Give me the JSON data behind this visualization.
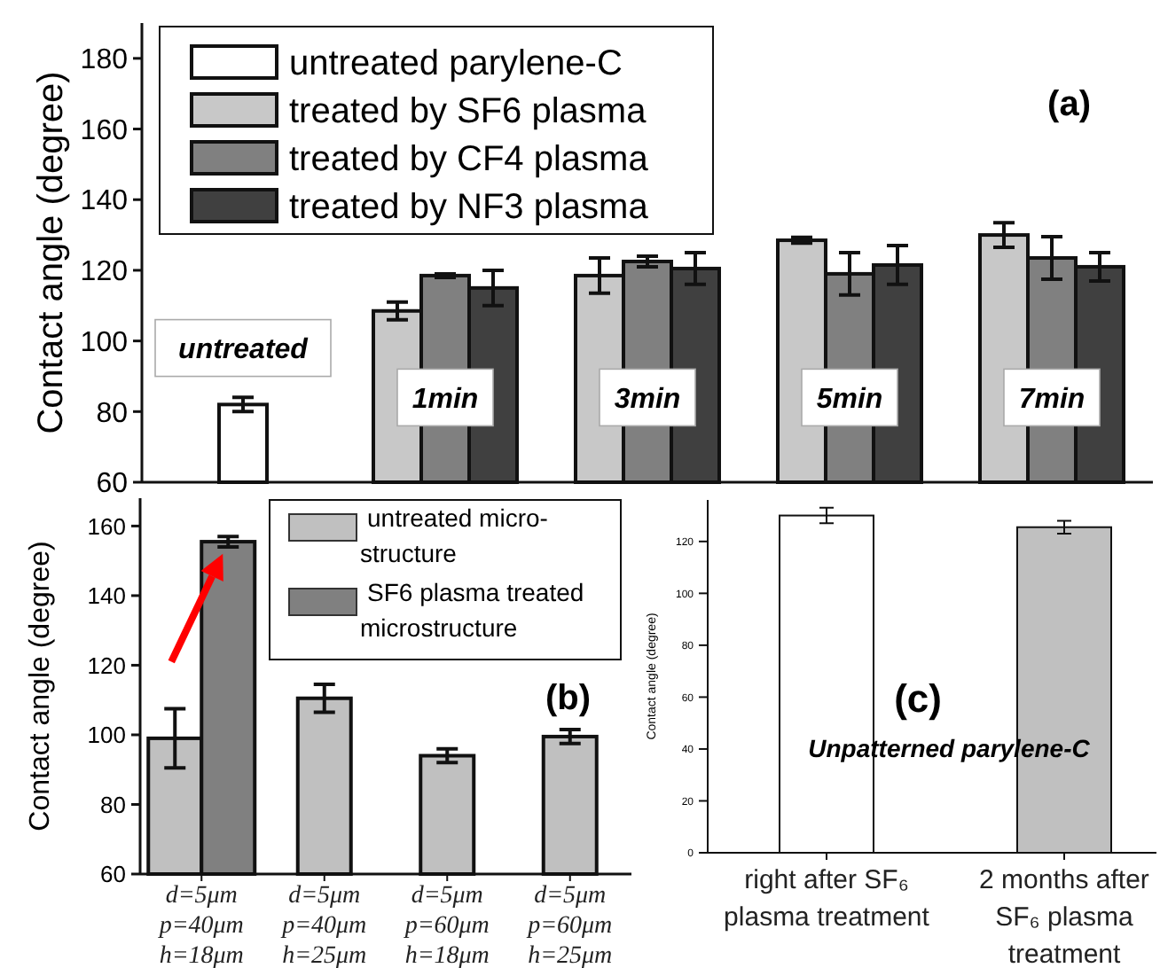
{
  "chart_data": [
    {
      "type": "bar",
      "categories": [
        "untreated",
        "1min",
        "3min",
        "5min",
        "7min"
      ],
      "ylabel": "Contact angle (degree)",
      "ylim": [
        60,
        190
      ],
      "yticks": [
        60,
        80,
        100,
        120,
        140,
        160,
        180
      ],
      "legend": "top left",
      "annotations": [
        "(a)"
      ],
      "series": [
        {
          "name": "untreated parylene-C",
          "color": "#ffffff",
          "values": [
            82,
            null,
            null,
            null,
            null
          ],
          "errors": [
            2,
            null,
            null,
            null,
            null
          ]
        },
        {
          "name": "treated by SF6 plasma",
          "color": "#c8c8c8",
          "values": [
            null,
            108.5,
            118.5,
            128.5,
            130
          ],
          "errors": [
            null,
            2.5,
            5,
            0.8,
            3.5
          ]
        },
        {
          "name": "treated by CF4 plasma",
          "color": "#808080",
          "values": [
            null,
            118.5,
            122.5,
            119,
            123.5
          ],
          "errors": [
            null,
            0.5,
            1.5,
            6,
            6
          ]
        },
        {
          "name": "treated by NF3 plasma",
          "color": "#404040",
          "values": [
            null,
            115,
            120.5,
            121.5,
            121
          ],
          "errors": [
            null,
            5,
            4.5,
            5.5,
            4
          ]
        }
      ]
    },
    {
      "type": "bar",
      "categories": [
        "d=5μm\np=40μm\nh=18μm",
        "d=5μm\np=40μm\nh=25μm",
        "d=5μm\np=60μm\nh=18μm",
        "d=5μm\np=60μm\nh=25μm"
      ],
      "ylabel": "Contact angle (degree)",
      "ylim": [
        60,
        168
      ],
      "yticks": [
        60,
        80,
        100,
        120,
        140,
        160
      ],
      "legend": "top right",
      "annotations": [
        "(b)"
      ],
      "series": [
        {
          "name": "untreated micro-\nstructure",
          "color": "#c0c0c0",
          "values": [
            99,
            110.5,
            94,
            99.5
          ],
          "errors": [
            8.5,
            4,
            2,
            2
          ]
        },
        {
          "name": "SF6 plasma treated\nmicrostructure",
          "color": "#808080",
          "values": [
            155.5,
            null,
            null,
            null
          ],
          "errors": [
            1.5,
            null,
            null,
            null
          ]
        }
      ]
    },
    {
      "type": "bar",
      "categories": [
        "right after SF₆\nplasma treatment",
        "2 months after\nSF₆ plasma\ntreatment"
      ],
      "ylabel": "Contact angle (degree)",
      "ylim": [
        0,
        136
      ],
      "yticks": [
        0,
        20,
        40,
        60,
        80,
        100,
        120
      ],
      "annotations": [
        "(c)",
        "Unpatterned parylene-C"
      ],
      "values": [
        130,
        125.5
      ],
      "errors": [
        3,
        2.5
      ],
      "colors": [
        "#ffffff",
        "#c0c0c0"
      ]
    }
  ]
}
